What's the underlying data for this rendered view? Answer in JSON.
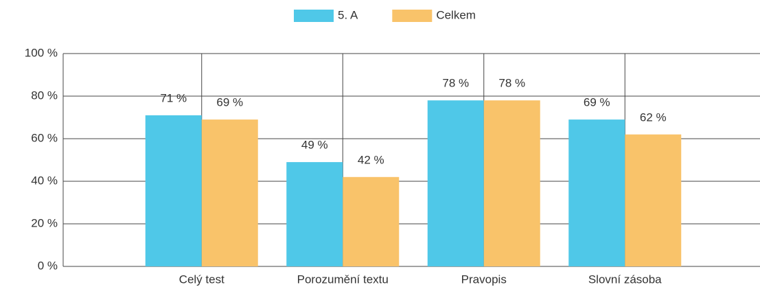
{
  "chart_data": {
    "type": "bar",
    "categories": [
      "Celý test",
      "Porozumění textu",
      "Pravopis",
      "Slovní zásoba"
    ],
    "series": [
      {
        "name": "5. A",
        "color": "#4fc8e8",
        "values": [
          71,
          49,
          78,
          69
        ],
        "value_labels": [
          "71 %",
          "49 %",
          "78 %",
          "69 %"
        ]
      },
      {
        "name": "Celkem",
        "color": "#f9c36a",
        "values": [
          69,
          42,
          78,
          62
        ],
        "value_labels": [
          "69 %",
          "42 %",
          "78 %",
          "62 %"
        ]
      }
    ],
    "ylim": [
      0,
      100
    ],
    "yticks": [
      {
        "value": 0,
        "label": "0 %"
      },
      {
        "value": 20,
        "label": "20 %"
      },
      {
        "value": 40,
        "label": "40 %"
      },
      {
        "value": 60,
        "label": "60 %"
      },
      {
        "value": 80,
        "label": "80 %"
      },
      {
        "value": 100,
        "label": "100 %"
      }
    ],
    "grid": true,
    "legend": "top"
  }
}
